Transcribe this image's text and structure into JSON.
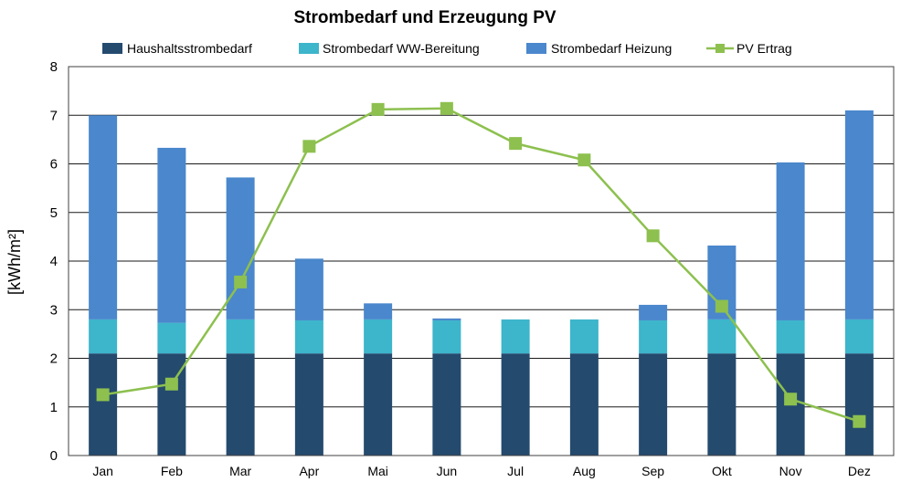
{
  "chart_data": {
    "type": "bar",
    "title": "Strombedarf und Erzeugung PV",
    "ylabel": "[kWh/m²]",
    "xlabel": "",
    "ylim": [
      0,
      8
    ],
    "yticks": [
      0,
      1,
      2,
      3,
      4,
      5,
      6,
      7,
      8
    ],
    "grid": true,
    "legend_position": "top",
    "categories": [
      "Jan",
      "Feb",
      "Mar",
      "Apr",
      "Mai",
      "Jun",
      "Jul",
      "Aug",
      "Sep",
      "Okt",
      "Nov",
      "Dez"
    ],
    "series": [
      {
        "name": "Haushaltsstrombedarf",
        "kind": "bar",
        "stacked": true,
        "color": "#244a6e",
        "values": [
          2.1,
          2.1,
          2.1,
          2.1,
          2.1,
          2.1,
          2.1,
          2.1,
          2.1,
          2.1,
          2.1,
          2.1
        ]
      },
      {
        "name": "Strombedarf WW-Bereitung",
        "kind": "bar",
        "stacked": true,
        "color": "#3db5cb",
        "values": [
          0.7,
          0.63,
          0.7,
          0.68,
          0.7,
          0.68,
          0.7,
          0.7,
          0.68,
          0.7,
          0.68,
          0.7
        ]
      },
      {
        "name": "Strombedarf Heizung",
        "kind": "bar",
        "stacked": true,
        "color": "#4a87cc",
        "values": [
          4.2,
          3.6,
          2.92,
          1.27,
          0.33,
          0.04,
          0.0,
          0.0,
          0.32,
          1.52,
          3.25,
          4.3
        ]
      },
      {
        "name": "PV Ertrag",
        "kind": "line",
        "color": "#8dc04f",
        "values": [
          1.25,
          1.47,
          3.57,
          6.36,
          7.12,
          7.14,
          6.42,
          6.08,
          4.52,
          3.07,
          1.16,
          0.7
        ]
      }
    ]
  }
}
